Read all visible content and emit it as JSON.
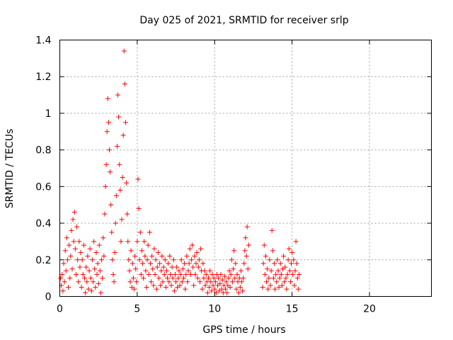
{
  "chart_data": {
    "type": "scatter",
    "title": "Day 025 of 2021, SRMTID for receiver srlp",
    "xlabel": "GPS time / hours",
    "ylabel": "SRMTID / TECUs",
    "xlim": [
      0,
      24
    ],
    "ylim": [
      0,
      1.4
    ],
    "x_ticks": [
      0,
      5,
      10,
      15,
      20
    ],
    "x_tick_labels": [
      "0",
      "5",
      "10",
      "15",
      "20"
    ],
    "y_ticks": [
      0,
      0.2,
      0.4,
      0.6,
      0.8,
      1.0,
      1.2,
      1.4
    ],
    "y_tick_labels": [
      "0",
      "0.2",
      "0.4",
      "0.6",
      "0.8",
      "1",
      "1.2",
      "1.4"
    ],
    "grid": true,
    "marker": "+",
    "series": [
      {
        "name": "SRMTID",
        "color": "#ff0000",
        "points": [
          [
            0.05,
            0.1
          ],
          [
            0.1,
            0.06
          ],
          [
            0.15,
            0.12
          ],
          [
            0.2,
            0.03
          ],
          [
            0.25,
            0.18
          ],
          [
            0.3,
            0.08
          ],
          [
            0.35,
            0.25
          ],
          [
            0.4,
            0.14
          ],
          [
            0.45,
            0.32
          ],
          [
            0.5,
            0.2
          ],
          [
            0.55,
            0.05
          ],
          [
            0.6,
            0.28
          ],
          [
            0.65,
            0.1
          ],
          [
            0.7,
            0.22
          ],
          [
            0.75,
            0.36
          ],
          [
            0.8,
            0.15
          ],
          [
            0.85,
            0.42
          ],
          [
            0.9,
            0.3
          ],
          [
            0.95,
            0.46
          ],
          [
            1.0,
            0.26
          ],
          [
            1.05,
            0.12
          ],
          [
            1.1,
            0.38
          ],
          [
            1.15,
            0.2
          ],
          [
            1.2,
            0.08
          ],
          [
            1.25,
            0.3
          ],
          [
            1.3,
            0.16
          ],
          [
            1.35,
            0.24
          ],
          [
            1.4,
            0.05
          ],
          [
            1.45,
            0.2
          ],
          [
            1.5,
            0.12
          ],
          [
            1.55,
            0.28
          ],
          [
            1.6,
            0.1
          ],
          [
            1.65,
            0.02
          ],
          [
            1.7,
            0.16
          ],
          [
            1.75,
            0.08
          ],
          [
            1.8,
            0.22
          ],
          [
            1.85,
            0.04
          ],
          [
            1.9,
            0.14
          ],
          [
            1.95,
            0.26
          ],
          [
            2.0,
            0.1
          ],
          [
            2.05,
            0.03
          ],
          [
            2.1,
            0.2
          ],
          [
            2.15,
            0.08
          ],
          [
            2.2,
            0.3
          ],
          [
            2.25,
            0.15
          ],
          [
            2.3,
            0.05
          ],
          [
            2.35,
            0.24
          ],
          [
            2.4,
            0.12
          ],
          [
            2.45,
            0.18
          ],
          [
            2.5,
            0.07
          ],
          [
            2.55,
            0.28
          ],
          [
            2.6,
            0.14
          ],
          [
            2.65,
            0.02
          ],
          [
            2.7,
            0.2
          ],
          [
            2.75,
            0.1
          ],
          [
            2.8,
            0.32
          ],
          [
            2.85,
            0.22
          ],
          [
            2.9,
            0.45
          ],
          [
            2.95,
            0.6
          ],
          [
            3.0,
            0.72
          ],
          [
            3.05,
            0.9
          ],
          [
            3.1,
            1.08
          ],
          [
            3.15,
            0.95
          ],
          [
            3.2,
            0.8
          ],
          [
            3.25,
            0.68
          ],
          [
            3.3,
            0.5
          ],
          [
            3.35,
            0.35
          ],
          [
            3.4,
            0.2
          ],
          [
            3.45,
            0.12
          ],
          [
            3.5,
            0.08
          ],
          [
            3.55,
            0.24
          ],
          [
            3.6,
            0.4
          ],
          [
            3.65,
            0.55
          ],
          [
            3.7,
            0.82
          ],
          [
            3.75,
            1.1
          ],
          [
            3.8,
            0.98
          ],
          [
            3.85,
            0.72
          ],
          [
            3.9,
            0.58
          ],
          [
            3.95,
            0.3
          ],
          [
            4.0,
            0.42
          ],
          [
            4.05,
            0.65
          ],
          [
            4.1,
            0.88
          ],
          [
            4.15,
            1.34
          ],
          [
            4.2,
            1.16
          ],
          [
            4.25,
            0.95
          ],
          [
            4.3,
            0.62
          ],
          [
            4.35,
            0.45
          ],
          [
            4.4,
            0.3
          ],
          [
            4.45,
            0.2
          ],
          [
            4.5,
            0.14
          ],
          [
            4.55,
            0.08
          ],
          [
            4.6,
            0.25
          ],
          [
            4.65,
            0.05
          ],
          [
            4.7,
            0.18
          ],
          [
            4.75,
            0.1
          ],
          [
            4.8,
            0.04
          ],
          [
            4.85,
            0.22
          ],
          [
            4.9,
            0.15
          ],
          [
            4.95,
            0.08
          ],
          [
            5.0,
            0.3
          ],
          [
            5.05,
            0.64
          ],
          [
            5.1,
            0.48
          ],
          [
            5.15,
            0.2
          ],
          [
            5.2,
            0.35
          ],
          [
            5.25,
            0.12
          ],
          [
            5.3,
            0.25
          ],
          [
            5.35,
            0.18
          ],
          [
            5.4,
            0.1
          ],
          [
            5.45,
            0.3
          ],
          [
            5.5,
            0.22
          ],
          [
            5.55,
            0.14
          ],
          [
            5.6,
            0.05
          ],
          [
            5.65,
            0.2
          ],
          [
            5.7,
            0.28
          ],
          [
            5.75,
            0.12
          ],
          [
            5.8,
            0.35
          ],
          [
            5.85,
            0.18
          ],
          [
            5.9,
            0.08
          ],
          [
            5.95,
            0.22
          ],
          [
            6.0,
            0.15
          ],
          [
            6.05,
            0.06
          ],
          [
            6.1,
            0.26
          ],
          [
            6.15,
            0.12
          ],
          [
            6.2,
            0.2
          ],
          [
            6.25,
            0.04
          ],
          [
            6.3,
            0.16
          ],
          [
            6.35,
            0.24
          ],
          [
            6.4,
            0.1
          ],
          [
            6.45,
            0.18
          ],
          [
            6.5,
            0.06
          ],
          [
            6.55,
            0.14
          ],
          [
            6.6,
            0.22
          ],
          [
            6.65,
            0.08
          ],
          [
            6.7,
            0.16
          ],
          [
            6.75,
            0.12
          ],
          [
            6.8,
            0.2
          ],
          [
            6.85,
            0.05
          ],
          [
            6.9,
            0.14
          ],
          [
            6.95,
            0.1
          ],
          [
            7.0,
            0.18
          ],
          [
            7.05,
            0.08
          ],
          [
            7.1,
            0.22
          ],
          [
            7.15,
            0.12
          ],
          [
            7.2,
            0.06
          ],
          [
            7.25,
            0.16
          ],
          [
            7.3,
            0.1
          ],
          [
            7.35,
            0.2
          ],
          [
            7.4,
            0.03
          ],
          [
            7.45,
            0.12
          ],
          [
            7.5,
            0.08
          ],
          [
            7.55,
            0.16
          ],
          [
            7.6,
            0.05
          ],
          [
            7.65,
            0.1
          ],
          [
            7.7,
            0.14
          ],
          [
            7.75,
            0.06
          ],
          [
            7.8,
            0.12
          ],
          [
            7.85,
            0.2
          ],
          [
            7.9,
            0.08
          ],
          [
            7.95,
            0.15
          ],
          [
            8.0,
            0.1
          ],
          [
            8.05,
            0.18
          ],
          [
            8.1,
            0.04
          ],
          [
            8.15,
            0.12
          ],
          [
            8.2,
            0.22
          ],
          [
            8.25,
            0.08
          ],
          [
            8.3,
            0.14
          ],
          [
            8.35,
            0.18
          ],
          [
            8.4,
            0.26
          ],
          [
            8.45,
            0.12
          ],
          [
            8.5,
            0.2
          ],
          [
            8.55,
            0.28
          ],
          [
            8.6,
            0.16
          ],
          [
            8.65,
            0.06
          ],
          [
            8.7,
            0.22
          ],
          [
            8.75,
            0.12
          ],
          [
            8.8,
            0.18
          ],
          [
            8.85,
            0.24
          ],
          [
            8.9,
            0.1
          ],
          [
            8.95,
            0.16
          ],
          [
            9.0,
            0.2
          ],
          [
            9.05,
            0.08
          ],
          [
            9.1,
            0.26
          ],
          [
            9.15,
            0.14
          ],
          [
            9.2,
            0.04
          ],
          [
            9.25,
            0.18
          ],
          [
            9.3,
            0.1
          ],
          [
            9.35,
            0.14
          ],
          [
            9.4,
            0.06
          ],
          [
            9.45,
            0.12
          ],
          [
            9.5,
            0.08
          ],
          [
            9.55,
            0.02
          ],
          [
            9.6,
            0.1
          ],
          [
            9.65,
            0.05
          ],
          [
            9.7,
            0.14
          ],
          [
            9.75,
            0.08
          ],
          [
            9.8,
            0.03
          ],
          [
            9.85,
            0.12
          ],
          [
            9.9,
            0.06
          ],
          [
            9.95,
            0.1
          ],
          [
            10.0,
            0.04
          ],
          [
            10.05,
            0.08
          ],
          [
            10.1,
            0.02
          ],
          [
            10.15,
            0.12
          ],
          [
            10.2,
            0.06
          ],
          [
            10.25,
            0.1
          ],
          [
            10.3,
            0.03
          ],
          [
            10.35,
            0.07
          ],
          [
            10.4,
            0.12
          ],
          [
            10.45,
            0.04
          ],
          [
            10.5,
            0.09
          ],
          [
            10.55,
            0.02
          ],
          [
            10.6,
            0.06
          ],
          [
            10.65,
            0.11
          ],
          [
            10.7,
            0.04
          ],
          [
            10.75,
            0.08
          ],
          [
            10.8,
            0.02
          ],
          [
            10.85,
            0.06
          ],
          [
            10.9,
            0.1
          ],
          [
            10.95,
            0.14
          ],
          [
            11.0,
            0.05
          ],
          [
            11.05,
            0.12
          ],
          [
            11.1,
            0.2
          ],
          [
            11.15,
            0.08
          ],
          [
            11.2,
            0.15
          ],
          [
            11.25,
            0.25
          ],
          [
            11.3,
            0.1
          ],
          [
            11.35,
            0.18
          ],
          [
            11.4,
            0.04
          ],
          [
            11.45,
            0.12
          ],
          [
            11.5,
            0.08
          ],
          [
            11.55,
            0.02
          ],
          [
            11.6,
            0.1
          ],
          [
            11.65,
            0.05
          ],
          [
            11.7,
            0.14
          ],
          [
            11.75,
            0.08
          ],
          [
            11.8,
            0.03
          ],
          [
            11.85,
            0.1
          ],
          [
            11.9,
            0.18
          ],
          [
            11.95,
            0.25
          ],
          [
            12.0,
            0.32
          ],
          [
            12.05,
            0.22
          ],
          [
            12.1,
            0.38
          ],
          [
            12.15,
            0.15
          ],
          [
            12.2,
            0.28
          ],
          [
            13.1,
            0.05
          ],
          [
            13.15,
            0.18
          ],
          [
            13.2,
            0.28
          ],
          [
            13.25,
            0.12
          ],
          [
            13.3,
            0.22
          ],
          [
            13.35,
            0.08
          ],
          [
            13.4,
            0.15
          ],
          [
            13.45,
            0.04
          ],
          [
            13.5,
            0.1
          ],
          [
            13.55,
            0.2
          ],
          [
            13.6,
            0.06
          ],
          [
            13.65,
            0.14
          ],
          [
            13.7,
            0.36
          ],
          [
            13.75,
            0.25
          ],
          [
            13.8,
            0.1
          ],
          [
            13.85,
            0.18
          ],
          [
            13.9,
            0.04
          ],
          [
            13.95,
            0.12
          ],
          [
            14.0,
            0.08
          ],
          [
            14.05,
            0.2
          ],
          [
            14.1,
            0.14
          ],
          [
            14.15,
            0.05
          ],
          [
            14.2,
            0.1
          ],
          [
            14.25,
            0.18
          ],
          [
            14.3,
            0.12
          ],
          [
            14.35,
            0.06
          ],
          [
            14.4,
            0.15
          ],
          [
            14.45,
            0.22
          ],
          [
            14.5,
            0.08
          ],
          [
            14.55,
            0.16
          ],
          [
            14.6,
            0.1
          ],
          [
            14.65,
            0.04
          ],
          [
            14.7,
            0.12
          ],
          [
            14.75,
            0.2
          ],
          [
            14.8,
            0.26
          ],
          [
            14.85,
            0.14
          ],
          [
            14.9,
            0.08
          ],
          [
            14.95,
            0.18
          ],
          [
            15.0,
            0.24
          ],
          [
            15.05,
            0.12
          ],
          [
            15.1,
            0.2
          ],
          [
            15.15,
            0.06
          ],
          [
            15.2,
            0.14
          ],
          [
            15.25,
            0.3
          ],
          [
            15.3,
            0.18
          ],
          [
            15.35,
            0.1
          ],
          [
            15.4,
            0.04
          ],
          [
            15.45,
            0.12
          ]
        ]
      }
    ]
  }
}
